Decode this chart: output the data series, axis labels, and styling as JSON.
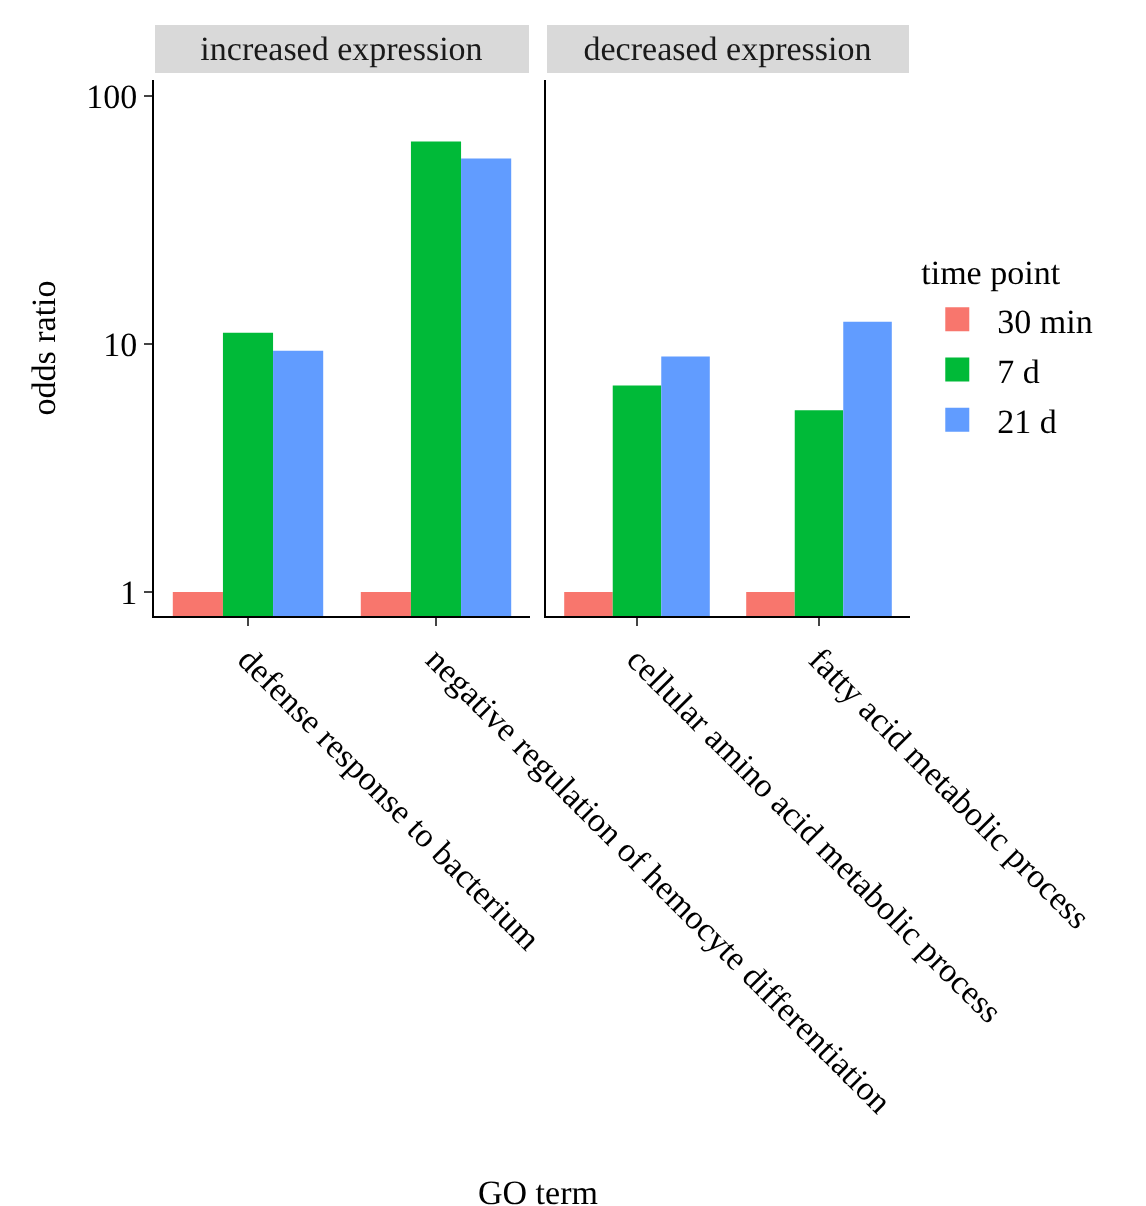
{
  "chart_data": [
    {
      "type": "bar",
      "title": "increased expression",
      "xlabel": "GO term",
      "ylabel": "odds ratio",
      "categories": [
        "defense response to bacterium",
        "negative regulation of hemocyte differentiation"
      ],
      "series": [
        {
          "color": "#f8766d",
          "values": [
            1,
            1
          ]
        },
        {
          "color": "#00ba38",
          "values": [
            11.1,
            65.6
          ]
        },
        {
          "color": "#619cff",
          "values": [
            9.4,
            56
          ]
        }
      ],
      "log": "y",
      "ylim": [
        0.8,
        116
      ],
      "yticks": [
        1,
        10,
        100
      ],
      "grid": false,
      "legend": false
    },
    {
      "type": "bar",
      "title": "decreased expression",
      "legend_title": "time point",
      "categories": [
        "cellular amino acid metabolic process",
        "fatty acid metabolic process"
      ],
      "series": [
        {
          "name": "30 min",
          "color": "#f8766d",
          "values": [
            1,
            1
          ]
        },
        {
          "name": "7 d",
          "color": "#00ba38",
          "values": [
            6.8,
            5.4
          ]
        },
        {
          "name": "21 d",
          "color": "#619cff",
          "values": [
            8.9,
            12.3
          ]
        }
      ],
      "log": "y",
      "ylim": [
        0.8,
        116
      ],
      "yticks": [
        1,
        10,
        100
      ],
      "grid": false,
      "legend": "right",
      "tick_labels": "x"
    }
  ]
}
